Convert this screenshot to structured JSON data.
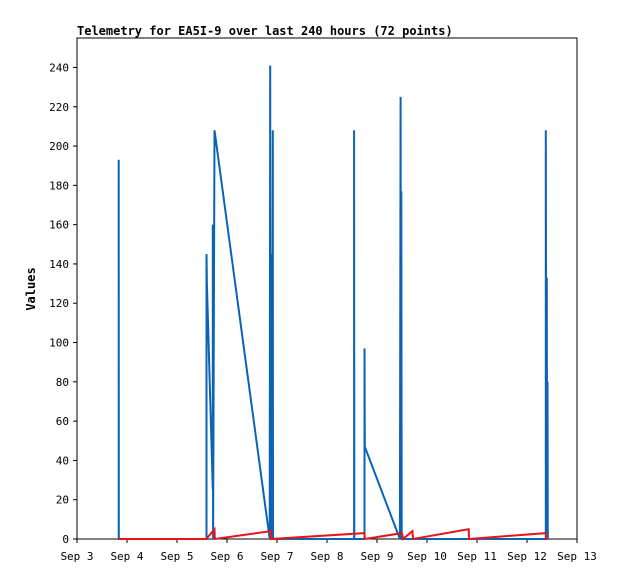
{
  "chart_data": {
    "type": "line",
    "title": "Telemetry for EA5I-9 over last 240 hours (72 points)",
    "xlabel": "",
    "ylabel": "Values",
    "xlim": [
      "Sep 3",
      "Sep 13"
    ],
    "ylim": [
      0,
      255
    ],
    "x_ticks": [
      "Sep 3",
      "Sep 4",
      "Sep 5",
      "Sep 6",
      "Sep 7",
      "Sep 8",
      "Sep 9",
      "Sep 10",
      "Sep 11",
      "Sep 12",
      "Sep 13"
    ],
    "y_ticks": [
      0,
      20,
      40,
      60,
      80,
      100,
      120,
      140,
      160,
      180,
      200,
      220,
      240
    ],
    "grid": false,
    "legend": "none",
    "series": [
      {
        "color": "#0b63b4",
        "points": [
          [
            "Sep 3 20:00",
            0
          ],
          [
            "Sep 3 20:00",
            193
          ],
          [
            "Sep 3 20:05",
            0
          ],
          [
            "Sep 5 14:10",
            0
          ],
          [
            "Sep 5 14:10",
            145
          ],
          [
            "Sep 5 14:20",
            130
          ],
          [
            "Sep 5 17:10",
            25
          ],
          [
            "Sep 5 17:10",
            160
          ],
          [
            "Sep 5 17:20",
            0
          ],
          [
            "Sep 5 18:00",
            208
          ],
          [
            "Sep 6 20:30",
            0
          ],
          [
            "Sep 6 20:45",
            241
          ],
          [
            "Sep 6 20:50",
            0
          ],
          [
            "Sep 6 21:00",
            145
          ],
          [
            "Sep 6 21:05",
            0
          ],
          [
            "Sep 6 21:20",
            113
          ],
          [
            "Sep 6 21:30",
            80
          ],
          [
            "Sep 6 21:40",
            0
          ],
          [
            "Sep 6 22:00",
            208
          ],
          [
            "Sep 6 22:05",
            0
          ],
          [
            "Sep 8 13:00",
            0
          ],
          [
            "Sep 8 13:00",
            208
          ],
          [
            "Sep 8 13:05",
            0
          ],
          [
            "Sep 8 18:00",
            0
          ],
          [
            "Sep 8 18:00",
            97
          ],
          [
            "Sep 8 18:10",
            47
          ],
          [
            "Sep 9 11:00",
            0
          ],
          [
            "Sep 9 11:20",
            225
          ],
          [
            "Sep 9 11:30",
            0
          ],
          [
            "Sep 9 11:40",
            177
          ],
          [
            "Sep 9 11:50",
            0
          ],
          [
            "Sep 12 9:00",
            0
          ],
          [
            "Sep 12 9:00",
            208
          ],
          [
            "Sep 12 9:20",
            0
          ],
          [
            "Sep 12 9:30",
            133
          ],
          [
            "Sep 12 9:40",
            0
          ],
          [
            "Sep 12 9:50",
            80
          ],
          [
            "Sep 12 9:55",
            27
          ],
          [
            "Sep 12 10:00",
            0
          ]
        ]
      },
      {
        "color": "#e8141b",
        "points": [
          [
            "Sep 3 20:00",
            0
          ],
          [
            "Sep 5 14:00",
            0
          ],
          [
            "Sep 5 18:00",
            5
          ],
          [
            "Sep 5 18:10",
            0
          ],
          [
            "Sep 6 21:00",
            4
          ],
          [
            "Sep 6 21:00",
            0
          ],
          [
            "Sep 8 18:00",
            3
          ],
          [
            "Sep 8 18:10",
            0
          ],
          [
            "Sep 9 12:00",
            3
          ],
          [
            "Sep 9 12:30",
            0
          ],
          [
            "Sep 9 17:00",
            4
          ],
          [
            "Sep 9 17:20",
            0
          ],
          [
            "Sep 10 20:00",
            5
          ],
          [
            "Sep 10 20:10",
            0
          ],
          [
            "Sep 12 9:00",
            3
          ],
          [
            "Sep 12 9:10",
            0
          ],
          [
            "Sep 12 10:00",
            0
          ]
        ]
      }
    ]
  }
}
